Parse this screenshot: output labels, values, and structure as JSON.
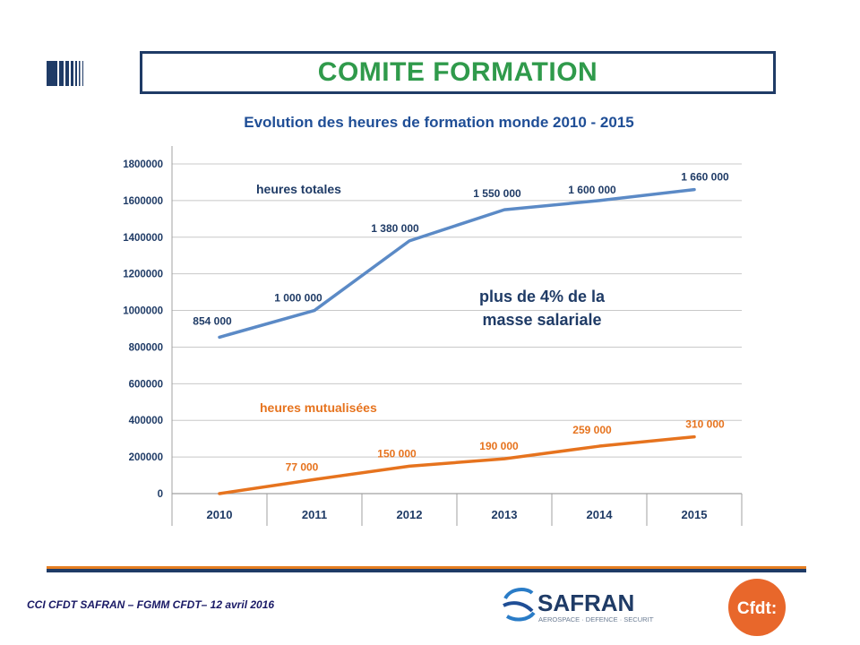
{
  "header": {
    "title": "COMITE FORMATION"
  },
  "footer": {
    "text": "CCI CFDT SAFRAN – FGMM CFDT– 12 avril 2016",
    "safran_name": "SAFRAN",
    "safran_tagline": "AEROSPACE · DEFENCE · SECURITY",
    "cfdt_name": "Cfdt:"
  },
  "colors": {
    "title_green": "#2f9a4b",
    "navy": "#1f3b66",
    "series_blue": "#5b8ac6",
    "series_orange": "#e6731e",
    "label_blue": "#1f3b66"
  },
  "chart_data": {
    "type": "line",
    "title": "Evolution des heures de formation monde 2010 - 2015",
    "categories": [
      "2010",
      "2011",
      "2012",
      "2013",
      "2014",
      "2015"
    ],
    "ylim": [
      0,
      1800000
    ],
    "yticks": [
      "0",
      "200000",
      "400000",
      "600000",
      "800000",
      "1000000",
      "1200000",
      "1400000",
      "1600000",
      "1800000"
    ],
    "grid": true,
    "series": [
      {
        "name": "heures totales",
        "color": "#5b8ac6",
        "values": [
          854000,
          1000000,
          1380000,
          1550000,
          1600000,
          1660000
        ],
        "labels": [
          "854 000",
          "1 000 000",
          "1 380 000",
          "1 550 000",
          "1 600 000",
          "1 660 000"
        ]
      },
      {
        "name": "heures mutualisées",
        "color": "#e6731e",
        "values": [
          0,
          77000,
          150000,
          190000,
          259000,
          310000
        ],
        "labels": [
          "",
          "77 000",
          "150 000",
          "190 000",
          "259 000",
          "310 000"
        ]
      }
    ],
    "annotation": [
      "plus de 4% de la",
      "masse salariale"
    ]
  }
}
